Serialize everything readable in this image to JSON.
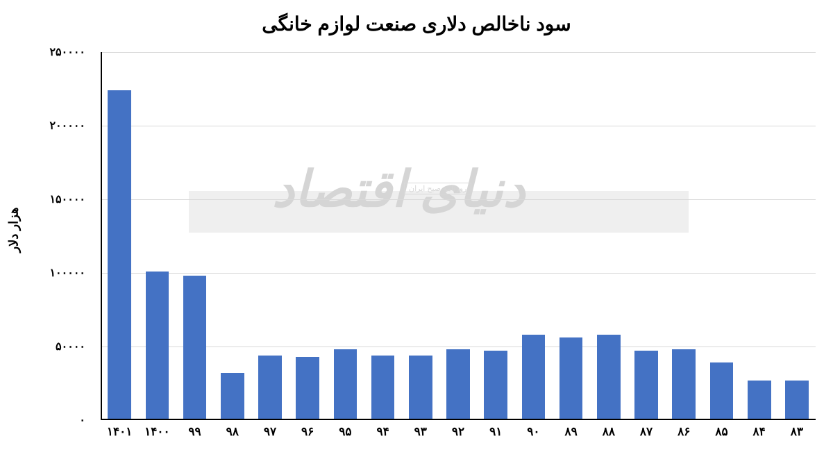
{
  "chart": {
    "type": "bar",
    "title": "سود ناخالص دلاری صنعت لوازم خانگی",
    "title_fontsize": 28,
    "title_color": "#000000",
    "ylabel": "هزار دلار",
    "ylabel_fontsize": 18,
    "background_color": "#ffffff",
    "grid_color": "#d9d9d9",
    "axis_color": "#000000",
    "bar_color": "#4472c4",
    "bar_width_ratio": 0.62,
    "ylim": [
      0,
      250000
    ],
    "ytick_step": 50000,
    "yticks": [
      {
        "value": 0,
        "label": "۰"
      },
      {
        "value": 50000,
        "label": "۵۰۰۰۰"
      },
      {
        "value": 100000,
        "label": "۱۰۰۰۰۰"
      },
      {
        "value": 150000,
        "label": "۱۵۰۰۰۰"
      },
      {
        "value": 200000,
        "label": "۲۰۰۰۰۰"
      },
      {
        "value": 250000,
        "label": "۲۵۰۰۰۰"
      }
    ],
    "categories": [
      "۸۳",
      "۸۴",
      "۸۵",
      "۸۶",
      "۸۷",
      "۸۸",
      "۸۹",
      "۹۰",
      "۹۱",
      "۹۲",
      "۹۳",
      "۹۴",
      "۹۵",
      "۹۶",
      "۹۷",
      "۹۸",
      "۹۹",
      "۱۴۰۰",
      "۱۴۰۱"
    ],
    "values": [
      26000,
      26000,
      38000,
      47000,
      46000,
      57000,
      55000,
      57000,
      46000,
      47000,
      43000,
      43000,
      47000,
      42000,
      43000,
      31000,
      97000,
      100000,
      223000
    ],
    "xtick_fontsize": 17,
    "ytick_fontsize": 16
  },
  "watermark": {
    "main_text": "دنیای اقتصاد",
    "sub_text": "روزنامه صبح ایران",
    "band_color": "#e8e8e8",
    "text_color": "#d5d5d5"
  }
}
